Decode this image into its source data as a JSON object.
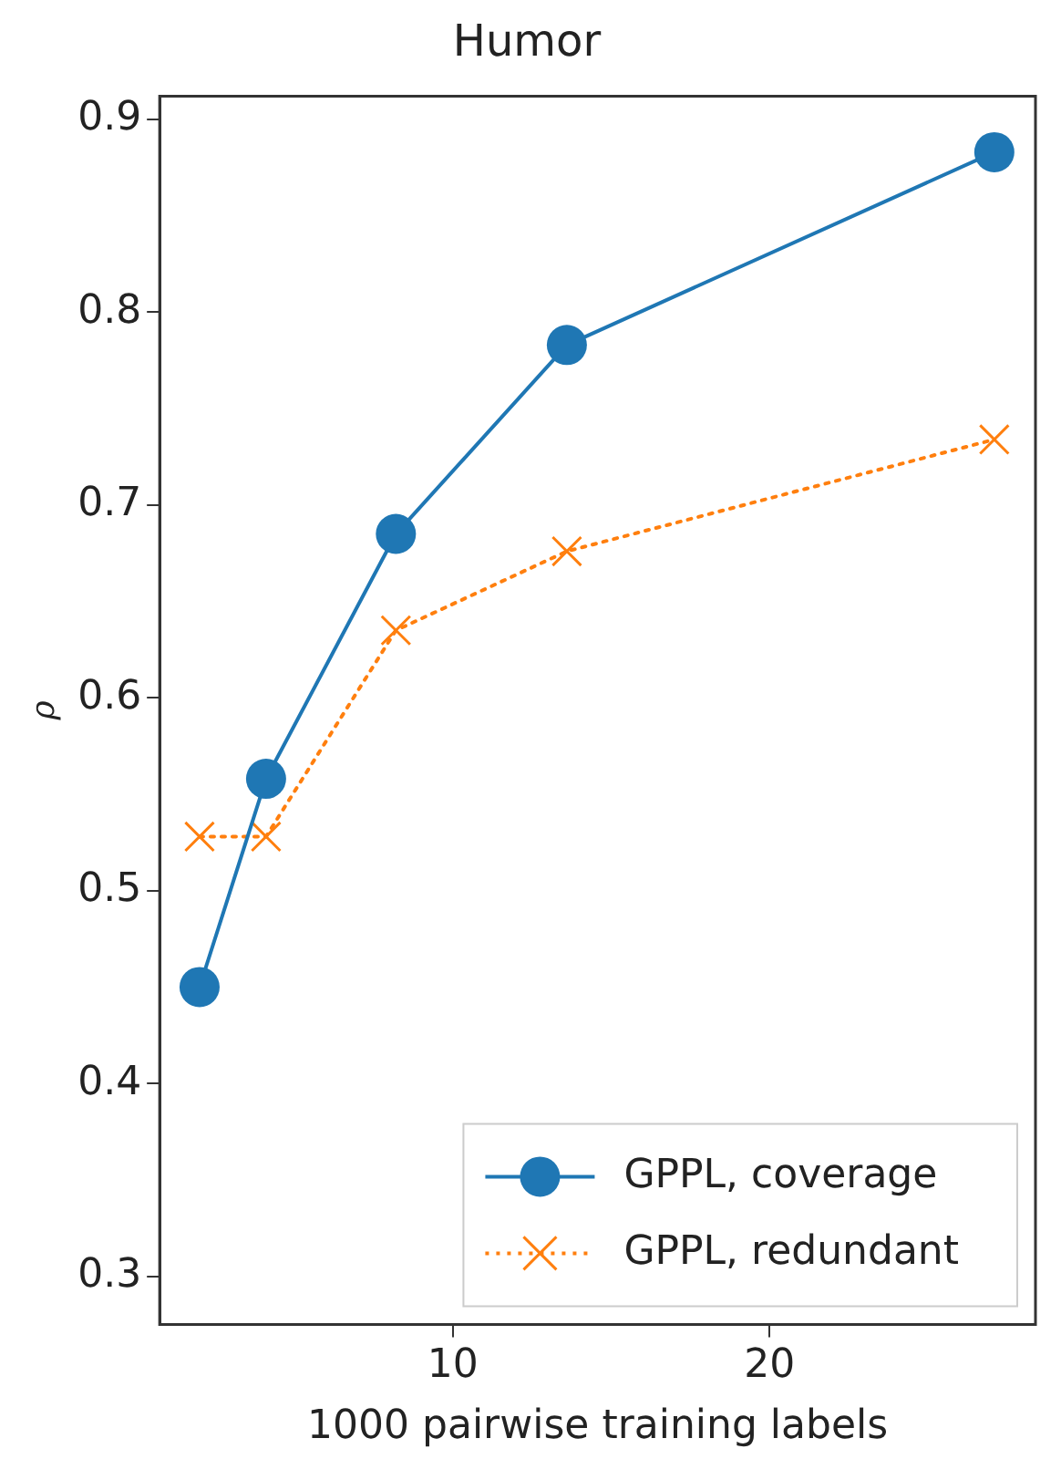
{
  "chart_data": {
    "type": "line",
    "title": "Humor",
    "xlabel": "1000 pairwise training labels",
    "ylabel": "ρ",
    "xlim": [
      0.74,
      28.4
    ],
    "xticks": [
      10,
      20
    ],
    "ylim": [
      0.275,
      0.912
    ],
    "yticks": [
      0.3,
      0.4,
      0.5,
      0.6,
      0.7,
      0.8,
      0.9
    ],
    "grid": false,
    "legend": "bottom right",
    "series": [
      {
        "name": "GPPL, coverage",
        "color": "#1f77b4",
        "marker": "circle",
        "line_style": "solid",
        "x": [
          2.0,
          4.1,
          8.2,
          13.6,
          27.1
        ],
        "values": [
          0.45,
          0.558,
          0.685,
          0.783,
          0.883
        ]
      },
      {
        "name": "GPPL, redundant",
        "color": "#ff7f0e",
        "marker": "cross",
        "line_style": "dotted",
        "x": [
          2.0,
          4.1,
          8.2,
          13.6,
          27.1
        ],
        "values": [
          0.528,
          0.528,
          0.635,
          0.676,
          0.734
        ]
      }
    ]
  }
}
